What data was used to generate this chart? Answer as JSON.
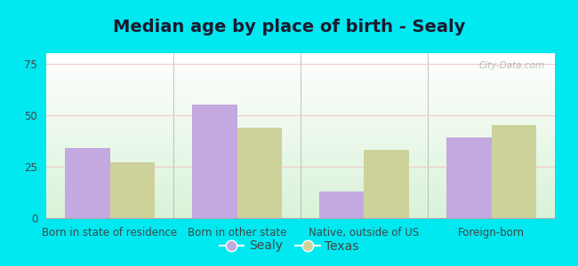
{
  "title": "Median age by place of birth - Sealy",
  "categories": [
    "Born in state of residence",
    "Born in other state",
    "Native, outside of US",
    "Foreign-born"
  ],
  "sealy_values": [
    34,
    55,
    13,
    39
  ],
  "texas_values": [
    27,
    44,
    33,
    45
  ],
  "sealy_color": "#c4a8e0",
  "texas_color": "#cdd19a",
  "ylim": [
    0,
    80
  ],
  "yticks": [
    0,
    25,
    50,
    75
  ],
  "background_outer": "#00e8f0",
  "legend_sealy": "Sealy",
  "legend_texas": "Texas",
  "bar_width": 0.35,
  "title_fontsize": 14,
  "tick_fontsize": 8.5,
  "legend_fontsize": 10,
  "grid_color": "#f5c8c8",
  "watermark": "City-Data.com"
}
